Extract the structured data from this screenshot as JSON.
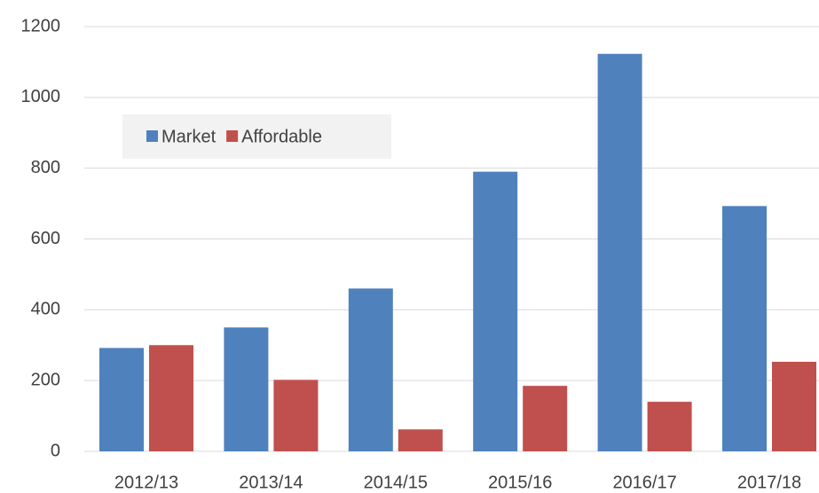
{
  "chart_data": {
    "type": "bar",
    "categories": [
      "2012/13",
      "2013/14",
      "2014/15",
      "2015/16",
      "2016/17",
      "2017/18"
    ],
    "series": [
      {
        "name": "Market",
        "color": "#4f81bd",
        "values": [
          292,
          350,
          460,
          790,
          1123,
          693
        ]
      },
      {
        "name": "Affordable",
        "color": "#c0504d",
        "values": [
          300,
          202,
          62,
          185,
          140,
          253
        ]
      }
    ],
    "ylim": [
      0,
      1200
    ],
    "yticks": [
      0,
      200,
      400,
      600,
      800,
      1000,
      1200
    ],
    "grid": true,
    "legend": "upper left"
  }
}
